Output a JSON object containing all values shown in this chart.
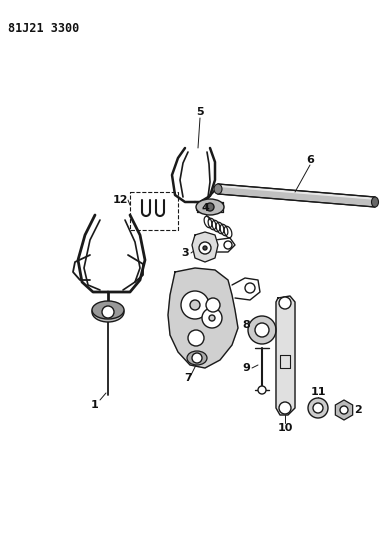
{
  "title": "81J21 3300",
  "bg_color": "#ffffff",
  "line_color": "#1a1a1a",
  "label_color": "#111111",
  "figsize": [
    3.87,
    5.33
  ],
  "dpi": 100
}
